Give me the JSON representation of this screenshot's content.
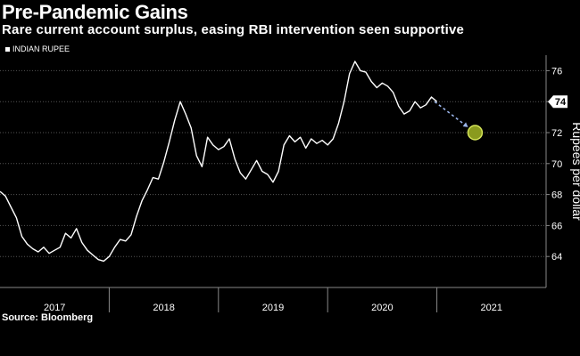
{
  "title": "Pre-Pandemic Gains",
  "subtitle": "Rare current account surplus, easing RBI intervention seen supportive",
  "legend": {
    "label": "INDIAN RUPEE"
  },
  "source": "Source: Bloomberg",
  "colors": {
    "background": "#000000",
    "line": "#ffffff",
    "projection_arrow": "#9ab3e8",
    "target_fill": "#8a9a1e",
    "target_stroke": "#d6e65a"
  },
  "chart_data": {
    "type": "line",
    "title": "Pre-Pandemic Gains",
    "ylabel": "Rupees per dollar",
    "xlabel": "",
    "ylim": [
      62,
      77
    ],
    "xlim": [
      2016.5,
      2021.5
    ],
    "y_ticks": [
      64,
      66,
      68,
      70,
      72,
      74,
      76
    ],
    "x_tick_labels": [
      "2017",
      "2018",
      "2019",
      "2020",
      "2021"
    ],
    "x_tick_positions": [
      2017,
      2018,
      2019,
      2020,
      2021
    ],
    "year_boundaries": [
      2017.5,
      2018.5,
      2019.5,
      2020.5
    ],
    "grid": true,
    "last_value_label": "74",
    "last_value": 74.0,
    "series": [
      {
        "name": "INDIAN RUPEE",
        "x": [
          2016.5,
          2016.55,
          2016.6,
          2016.65,
          2016.7,
          2016.75,
          2016.8,
          2016.85,
          2016.9,
          2016.95,
          2017.0,
          2017.05,
          2017.1,
          2017.15,
          2017.2,
          2017.25,
          2017.3,
          2017.35,
          2017.4,
          2017.45,
          2017.5,
          2017.55,
          2017.6,
          2017.65,
          2017.7,
          2017.75,
          2017.8,
          2017.85,
          2017.9,
          2017.95,
          2018.0,
          2018.05,
          2018.1,
          2018.15,
          2018.2,
          2018.25,
          2018.3,
          2018.35,
          2018.4,
          2018.45,
          2018.5,
          2018.55,
          2018.6,
          2018.65,
          2018.7,
          2018.75,
          2018.8,
          2018.85,
          2018.9,
          2018.95,
          2019.0,
          2019.05,
          2019.1,
          2019.15,
          2019.2,
          2019.25,
          2019.3,
          2019.35,
          2019.4,
          2019.45,
          2019.5,
          2019.55,
          2019.6,
          2019.65,
          2019.7,
          2019.75,
          2019.8,
          2019.85,
          2019.9,
          2019.95,
          2020.0,
          2020.05,
          2020.1,
          2020.15,
          2020.2,
          2020.25,
          2020.3,
          2020.35,
          2020.4,
          2020.45,
          2020.5
        ],
        "y": [
          68.2,
          67.9,
          67.2,
          66.5,
          65.3,
          64.8,
          64.5,
          64.3,
          64.6,
          64.2,
          64.4,
          64.6,
          65.5,
          65.2,
          65.8,
          64.9,
          64.4,
          64.1,
          63.8,
          63.7,
          64.0,
          64.6,
          65.1,
          65.0,
          65.4,
          66.6,
          67.6,
          68.3,
          69.1,
          69.0,
          70.1,
          71.4,
          72.8,
          74.0,
          73.2,
          72.3,
          70.5,
          69.8,
          71.7,
          71.2,
          70.9,
          71.1,
          71.6,
          70.3,
          69.4,
          69.0,
          69.6,
          70.2,
          69.5,
          69.3,
          68.8,
          69.5,
          71.2,
          71.8,
          71.4,
          71.7,
          71.0,
          71.6,
          71.3,
          71.5,
          71.2,
          71.6,
          72.6,
          74.0,
          75.8,
          76.6,
          76.0,
          75.9,
          75.3,
          74.9,
          75.2,
          75.0,
          74.6,
          73.7,
          73.2,
          73.4,
          74.0,
          73.6,
          73.8,
          74.3,
          74.0
        ]
      }
    ],
    "projection": {
      "from": [
        2020.48,
        74.0
      ],
      "to": [
        2020.85,
        72.0
      ],
      "target_value": 72.0
    }
  }
}
